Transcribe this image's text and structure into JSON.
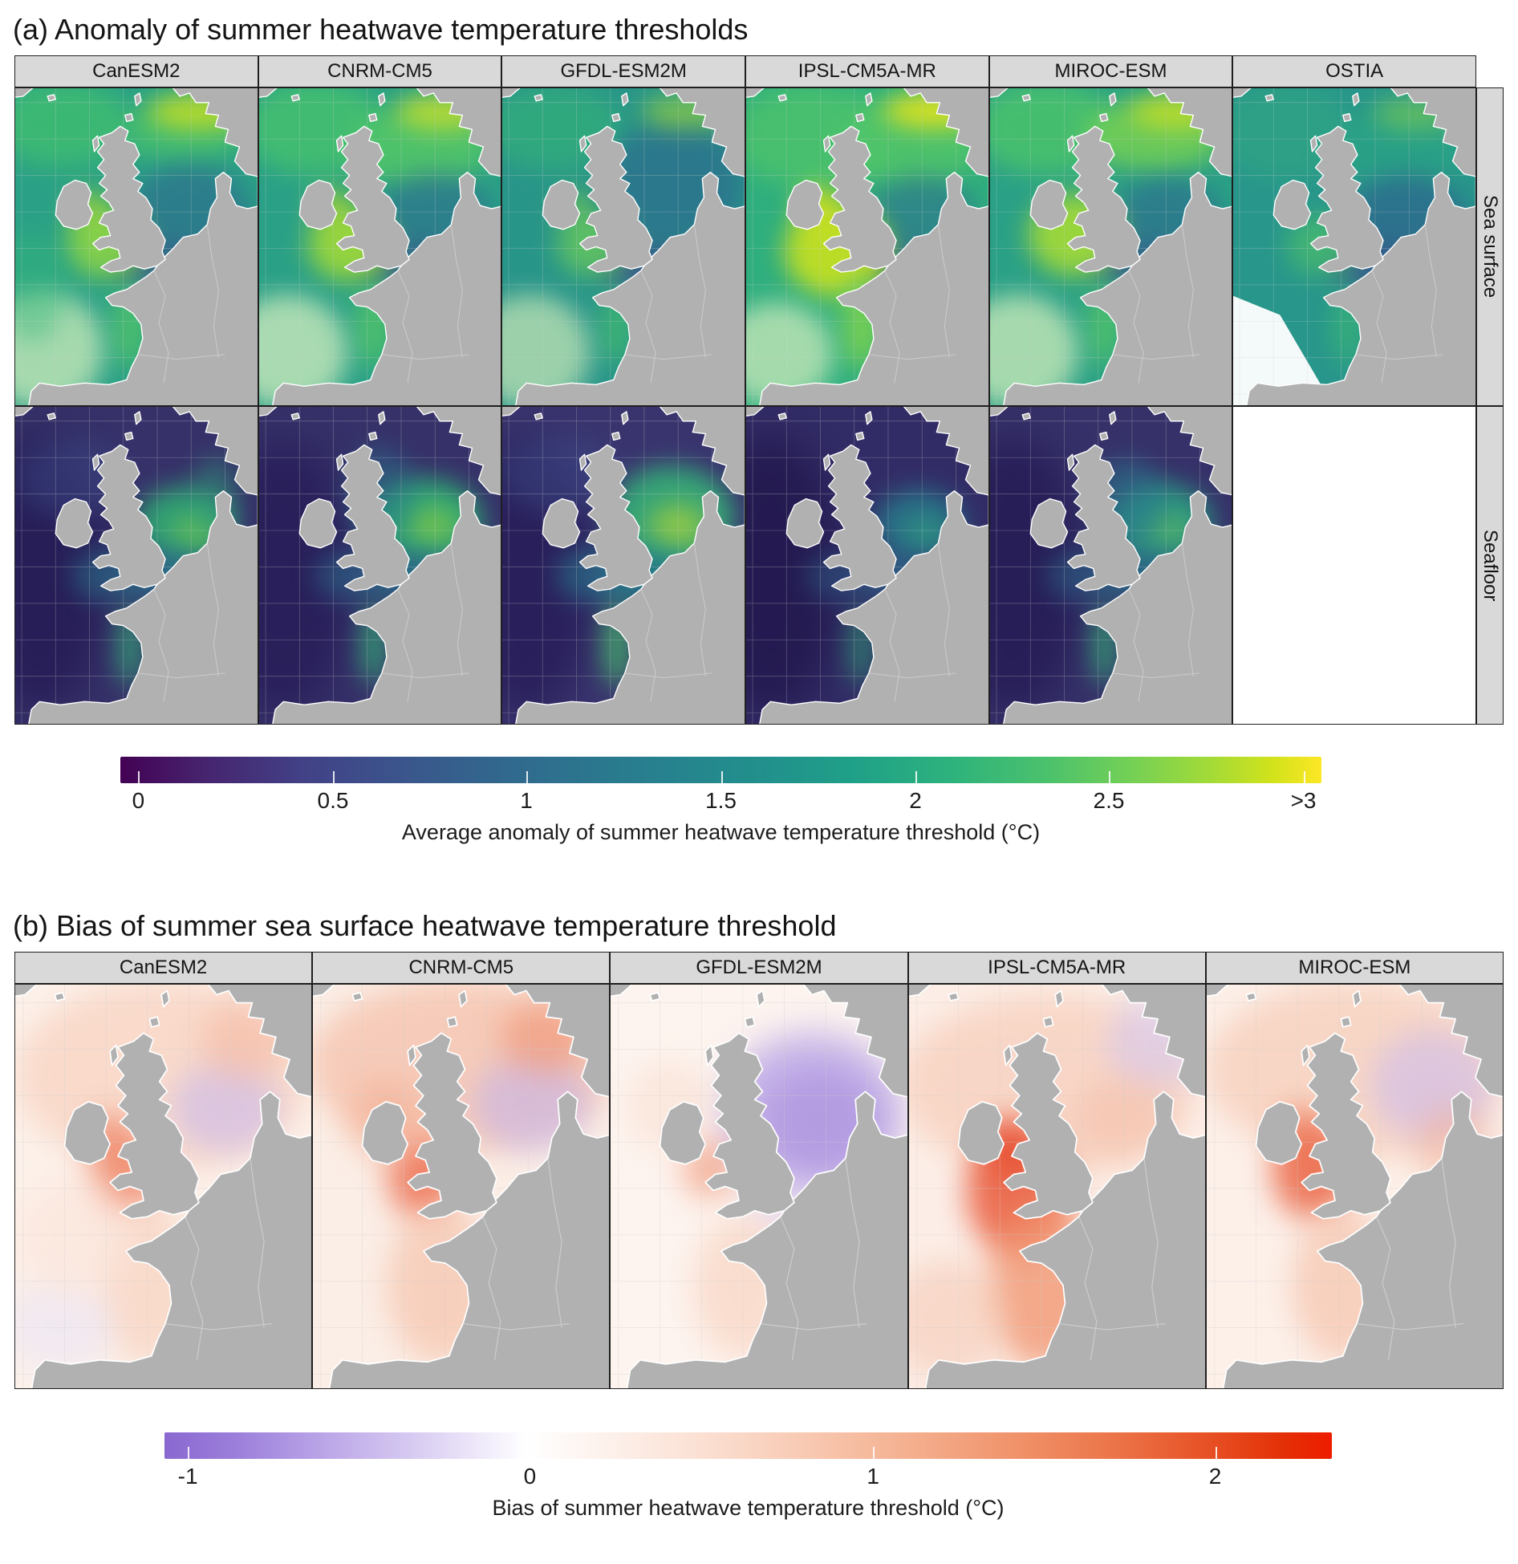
{
  "panel_a": {
    "title": "(a) Anomaly of summer heatwave temperature thresholds",
    "columns": [
      "CanESM2",
      "CNRM-CM5",
      "GFDL-ESM2M",
      "IPSL-CM5A-MR",
      "MIROC-ESM",
      "OSTIA"
    ],
    "rows": [
      "Sea surface",
      "Seafloor"
    ],
    "colorbar": {
      "label": "Average anomaly of summer heatwave temperature threshold (°C)",
      "ticks": [
        "0",
        "0.5",
        "1",
        "1.5",
        "2",
        "2.5",
        ">3"
      ],
      "palette": "viridis",
      "palette_hex": [
        "#440154",
        "#3b548c",
        "#26838e",
        "#21918c",
        "#2db27d",
        "#a5db36",
        "#fde725"
      ],
      "range_c": [
        0,
        3
      ]
    }
  },
  "panel_b": {
    "title": "(b) Bias of summer sea surface heatwave temperature threshold",
    "columns": [
      "CanESM2",
      "CNRM-CM5",
      "GFDL-ESM2M",
      "IPSL-CM5A-MR",
      "MIROC-ESM"
    ],
    "colorbar": {
      "label": "Bias of summer heatwave temperature threshold (°C)",
      "ticks": [
        "-1",
        "0",
        "1",
        "2"
      ],
      "palette": "diverging purple-white-red",
      "palette_hex": [
        "#8a68d0",
        "#ffffff",
        "#f8c9b2",
        "#ee1c00"
      ],
      "range_c": [
        -1.1,
        2.35
      ]
    }
  },
  "map_style": {
    "land_color": "#b1b1b1",
    "coastline_color": "#ffffff",
    "strip_background": "#d9d9d9",
    "region": "Northwest European shelf seas: British Isles, North Sea, Bay of Biscay, Norwegian coast"
  },
  "chart_data": [
    {
      "type": "heatmap",
      "subtype": "faceted geographic raster maps (Northwest European shelf: British Isles, North Sea, Bay of Biscay, Norwegian coast)",
      "title": "(a) Anomaly of summer heatwave temperature thresholds",
      "facet_columns": [
        "CanESM2",
        "CNRM-CM5",
        "GFDL-ESM2M",
        "IPSL-CM5A-MR",
        "MIROC-ESM",
        "OSTIA"
      ],
      "facet_rows": [
        "Sea surface",
        "Seafloor"
      ],
      "empty_facets": [
        "OSTIA x Seafloor"
      ],
      "colorbar": {
        "label": "Average anomaly of summer heatwave temperature threshold (°C)",
        "palette": "viridis (dark purple - blue - teal - green - yellow)",
        "ticks": [
          0,
          0.5,
          1,
          1.5,
          2,
          2.5,
          ">3"
        ],
        "range": [
          0,
          3
        ],
        "orientation": "horizontal, below facet grid"
      },
      "pattern_summary": {
        "sea_surface": "Anomalies mostly 1.5-2.5 °C (green/teal) across the open North Atlantic and northern North Sea; highest values (2.5 to >3 °C, yellow) along the Norwegian coast and in the Celtic/Irish Sea (strongest in IPSL-CM5A-MR); lower values (0.5-1 °C, dark blue) in the English Channel and southern North Sea; OSTIA observations are more muted teal.",
        "seafloor": "Anomalies mostly 0-1 °C (dark purple/navy) over deep water; green patches of 1.5-2.5 °C in the shallow central and southern North Sea (brightest in GFDL-ESM2M, darkest overall in IPSL-CM5A-MR) and thin green bands along coastal shelves."
      }
    },
    {
      "type": "heatmap",
      "subtype": "faceted geographic raster maps (same region, sea surface only)",
      "title": "(b) Bias of summer sea surface heatwave temperature threshold",
      "facet_columns": [
        "CanESM2",
        "CNRM-CM5",
        "GFDL-ESM2M",
        "IPSL-CM5A-MR",
        "MIROC-ESM"
      ],
      "colorbar": {
        "label": "Bias of summer heatwave temperature threshold (°C)",
        "palette": "diverging purple - white - red",
        "ticks": [
          -1,
          0,
          1,
          2
        ],
        "range": [
          -1.1,
          2.35
        ],
        "orientation": "horizontal, below facet grid"
      },
      "pattern_summary": "Mostly small warm biases (0-1 °C, pale pink/red), strongest (1-2 °C) in the Irish Sea, Celtic Sea and Bay of Biscay (largest in IPSL-CM5A-MR and MIROC-ESM); cool biases (down to about -1 °C, purple) in the central/northern North Sea, most pronounced in GFDL-ESM2M."
    }
  ]
}
